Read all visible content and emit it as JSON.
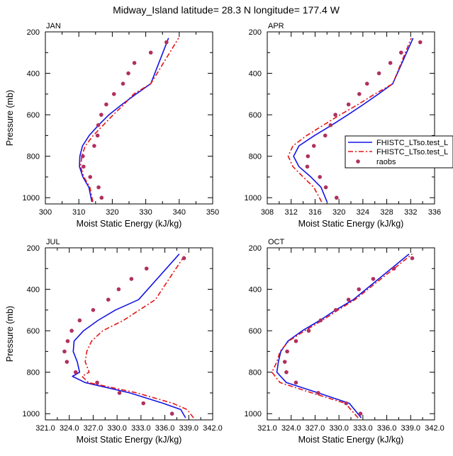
{
  "title": "Midway_Island  latitude= 28.3 N longitude= 177.4 W",
  "colors": {
    "model_a": "#1414e6",
    "model_b": "#e61414",
    "obs": "#b03060"
  },
  "legend": {
    "entries": [
      "FHISTC_LTso.test_L",
      "FHISTC_LTso.test_L",
      "raobs"
    ],
    "placement": "right of APR panel"
  },
  "chart_data": [
    {
      "type": "line",
      "panel": "JAN",
      "xlabel": "Moist Static Energy (kJ/kg)",
      "ylabel": "Pressure (mb)",
      "xlim": [
        300,
        350
      ],
      "ylim": [
        1030,
        200
      ],
      "x_ticks": [
        "300",
        "310",
        "320",
        "330",
        "340",
        "350"
      ],
      "y_ticks": [
        "200",
        "400",
        "600",
        "800",
        "1000"
      ],
      "series": [
        {
          "name": "FHISTC_LTso.test_L",
          "style": "solid",
          "x": [
            313.9,
            313.0,
            311.2,
            310.2,
            310.3,
            311.1,
            313.1,
            315.9,
            319.0,
            322.9,
            327.1,
            331.5,
            336.8
          ],
          "y": [
            1020,
            950,
            900,
            850,
            800,
            750,
            700,
            650,
            600,
            550,
            500,
            450,
            230
          ]
        },
        {
          "name": "FHISTC_LTso.test_L",
          "style": "dashed",
          "x": [
            314.2,
            313.3,
            311.5,
            310.5,
            310.9,
            311.9,
            314.3,
            317.3,
            320.3,
            323.5,
            326.4,
            331.5,
            339.8
          ],
          "y": [
            1020,
            950,
            900,
            850,
            800,
            750,
            700,
            650,
            600,
            550,
            500,
            450,
            230
          ]
        },
        {
          "name": "raobs",
          "style": "markers",
          "x": [
            316.8,
            315.9,
            313.4,
            311.4,
            311.2,
            314.6,
            315.6,
            315.8,
            316.7,
            318.2,
            320.5,
            323.2,
            324.8,
            326.6,
            331.5,
            336.2
          ],
          "y": [
            1000,
            950,
            900,
            850,
            800,
            750,
            700,
            650,
            600,
            550,
            500,
            450,
            400,
            350,
            300,
            250
          ]
        }
      ]
    },
    {
      "type": "line",
      "panel": "APR",
      "xlabel": "Moist Static Energy (kJ/kg)",
      "ylabel": "",
      "xlim": [
        308,
        336
      ],
      "ylim": [
        1030,
        200
      ],
      "x_ticks": [
        "308",
        "312",
        "316",
        "320",
        "324",
        "328",
        "332",
        "336"
      ],
      "y_ticks": [
        "200",
        "400",
        "600",
        "800",
        "1000"
      ],
      "series": [
        {
          "name": "FHISTC_LTso.test_L",
          "style": "solid",
          "x": [
            318.0,
            317.0,
            315.3,
            313.3,
            312.4,
            313.3,
            315.9,
            318.8,
            321.5,
            324.1,
            326.6,
            329.0,
            332.4
          ],
          "y": [
            1020,
            950,
            900,
            850,
            800,
            750,
            700,
            650,
            600,
            550,
            500,
            450,
            230
          ]
        },
        {
          "name": "FHISTC_LTso.test_L",
          "style": "dashed",
          "x": [
            317.1,
            315.8,
            314.0,
            312.3,
            311.5,
            312.3,
            314.6,
            317.4,
            320.2,
            323.2,
            326.0,
            329.0,
            332.1
          ],
          "y": [
            1020,
            950,
            900,
            850,
            800,
            750,
            700,
            650,
            600,
            550,
            500,
            450,
            230
          ]
        },
        {
          "name": "raobs",
          "style": "markers",
          "x": [
            319.6,
            317.8,
            316.8,
            314.7,
            314.8,
            315.8,
            317.7,
            318.6,
            319.4,
            321.6,
            323.4,
            324.7,
            326.7,
            328.6,
            330.4,
            333.6
          ],
          "y": [
            1000,
            950,
            900,
            850,
            800,
            750,
            700,
            650,
            600,
            550,
            500,
            450,
            400,
            350,
            300,
            250
          ]
        }
      ]
    },
    {
      "type": "line",
      "panel": "JUL",
      "xlabel": "Moist Static Energy (kJ/kg)",
      "ylabel": "Pressure (mb)",
      "xlim": [
        321,
        342
      ],
      "ylim": [
        1030,
        200
      ],
      "x_ticks": [
        "321.0",
        "324.0",
        "327.0",
        "330.0",
        "333.0",
        "336.0",
        "339.0",
        "342.0"
      ],
      "y_ticks": [
        "200",
        "400",
        "600",
        "800",
        "1000"
      ],
      "series": [
        {
          "name": "FHISTC_LTso.test_L",
          "style": "solid",
          "x": [
            338.6,
            338.0,
            335.8,
            331.6,
            326.0,
            324.4,
            325.3,
            325.0,
            324.5,
            324.6,
            325.8,
            327.6,
            329.8,
            332.7,
            337.8
          ],
          "y": [
            1020,
            980,
            950,
            900,
            850,
            820,
            800,
            750,
            700,
            650,
            600,
            550,
            500,
            450,
            230
          ]
        },
        {
          "name": "FHISTC_LTso.test_L",
          "style": "dashed",
          "x": [
            339.6,
            338.8,
            337.0,
            332.5,
            326.4,
            325.6,
            326.5,
            326.0,
            326.2,
            326.8,
            328.2,
            330.8,
            332.8,
            334.8,
            338.6
          ],
          "y": [
            1020,
            980,
            950,
            900,
            850,
            820,
            800,
            750,
            700,
            650,
            600,
            550,
            500,
            450,
            230
          ]
        },
        {
          "name": "raobs",
          "style": "markers",
          "x": [
            336.9,
            333.3,
            330.3,
            327.5,
            324.8,
            323.7,
            323.4,
            323.8,
            324.3,
            325.3,
            327.0,
            328.9,
            330.2,
            331.8,
            333.7,
            338.4
          ],
          "y": [
            1000,
            950,
            900,
            850,
            800,
            750,
            700,
            650,
            600,
            550,
            500,
            450,
            400,
            350,
            300,
            250
          ]
        }
      ]
    },
    {
      "type": "line",
      "panel": "OCT",
      "xlabel": "Moist Static Energy (kJ/kg)",
      "ylabel": "",
      "xlim": [
        321,
        342
      ],
      "ylim": [
        1030,
        200
      ],
      "x_ticks": [
        "321.0",
        "324.0",
        "327.0",
        "330.0",
        "333.0",
        "336.0",
        "339.0",
        "342.0"
      ],
      "y_ticks": [
        "200",
        "400",
        "600",
        "800",
        "1000"
      ],
      "series": [
        {
          "name": "FHISTC_LTso.test_L",
          "style": "solid",
          "x": [
            332.8,
            331.3,
            327.4,
            323.4,
            322.2,
            322.4,
            322.7,
            323.6,
            325.4,
            327.6,
            329.6,
            331.8,
            338.8
          ],
          "y": [
            1020,
            950,
            900,
            850,
            800,
            750,
            700,
            650,
            600,
            550,
            500,
            450,
            230
          ]
        },
        {
          "name": "FHISTC_LTso.test_L",
          "style": "dashed",
          "x": [
            332.4,
            330.8,
            326.6,
            322.6,
            321.6,
            322.2,
            322.6,
            323.7,
            325.7,
            327.9,
            329.9,
            332.0,
            339.2
          ],
          "y": [
            1020,
            950,
            900,
            850,
            800,
            750,
            700,
            650,
            600,
            550,
            500,
            450,
            230
          ]
        },
        {
          "name": "raobs",
          "style": "markers",
          "x": [
            332.7,
            330.9,
            327.4,
            324.6,
            323.4,
            323.2,
            323.5,
            324.6,
            326.2,
            327.7,
            329.6,
            331.2,
            332.5,
            334.3,
            336.9,
            339.2
          ],
          "y": [
            1000,
            950,
            900,
            850,
            800,
            750,
            700,
            650,
            600,
            550,
            500,
            450,
            400,
            350,
            300,
            250
          ]
        }
      ]
    }
  ]
}
